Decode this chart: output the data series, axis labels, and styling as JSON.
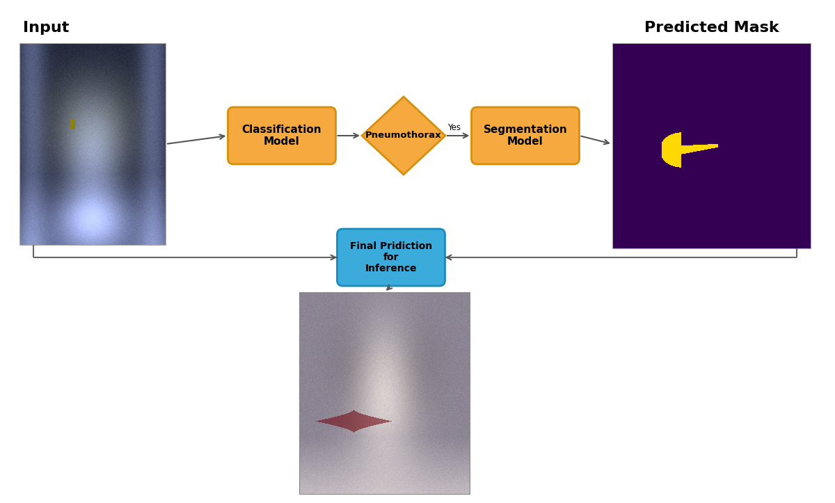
{
  "background_color": "#ffffff",
  "input_label": "Input",
  "predicted_mask_label": "Predicted Mask",
  "class_model_label": "Classification\nModel",
  "pneumothorax_label": "Pneumothorax",
  "yes_label": "Yes",
  "seg_model_label": "Segmentation\nModel",
  "final_label": "Final Pridiction\nfor\nInference",
  "orange_color": "#F5A93E",
  "orange_border": "#D4900A",
  "blue_color": "#3AABDB",
  "blue_border": "#1A8ABB",
  "mask_bg_color": "#330055",
  "yellow_mask_color": "#FFD700",
  "figsize": [
    12.0,
    7.23
  ],
  "dpi": 100
}
